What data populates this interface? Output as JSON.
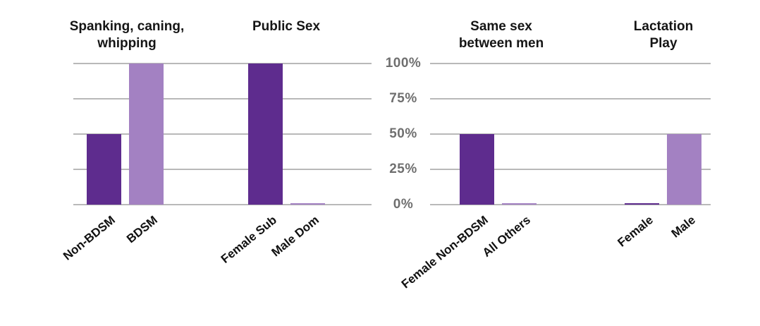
{
  "chart_data": {
    "type": "bar",
    "title": "",
    "xlabel": "",
    "ylabel": "",
    "ylim": [
      0,
      100
    ],
    "grid": true,
    "legend_position": "none",
    "y_ticks": [
      {
        "value": 100,
        "label": "100%"
      },
      {
        "value": 75,
        "label": "75%"
      },
      {
        "value": 50,
        "label": "50%"
      },
      {
        "value": 25,
        "label": "25%"
      },
      {
        "value": 0,
        "label": "0%"
      }
    ],
    "colors": {
      "bar_dark_purple": "#5e2c8e",
      "bar_light_purple": "#a381c2",
      "gridline": "#b9b9b9",
      "y_tick_text": "#6f6f6f",
      "title_text": "#151515",
      "category_text": "#111111"
    },
    "panels": [
      {
        "title": "Spanking, caning,\nwhipping",
        "bars": [
          {
            "category": "Non-BDSM",
            "value": 50,
            "color_role": "bar_dark_purple"
          },
          {
            "category": "BDSM",
            "value": 100,
            "color_role": "bar_light_purple"
          }
        ]
      },
      {
        "title": "Public Sex",
        "bars": [
          {
            "category": "Female Sub",
            "value": 100,
            "color_role": "bar_dark_purple"
          },
          {
            "category": "Male Dom",
            "value": 1,
            "color_role": "bar_light_purple"
          }
        ]
      },
      {
        "title": "Same sex\nbetween men",
        "bars": [
          {
            "category": "Female Non-BDSM",
            "value": 50,
            "color_role": "bar_dark_purple"
          },
          {
            "category": "All Others",
            "value": 1,
            "color_role": "bar_light_purple"
          }
        ]
      },
      {
        "title": "Lactation\nPlay",
        "bars": [
          {
            "category": "Female",
            "value": 1,
            "color_role": "bar_dark_purple"
          },
          {
            "category": "Male",
            "value": 50,
            "color_role": "bar_light_purple"
          }
        ]
      }
    ]
  }
}
